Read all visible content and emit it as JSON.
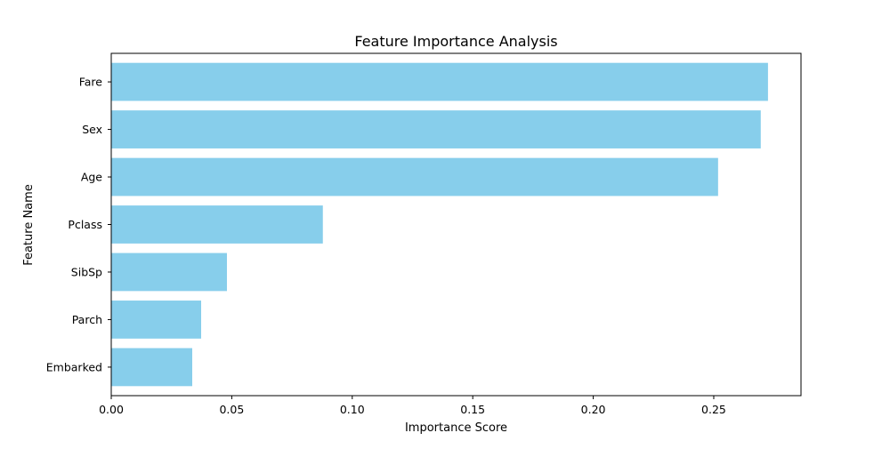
{
  "chart_data": {
    "type": "bar",
    "orientation": "horizontal",
    "title": "Feature Importance Analysis",
    "xlabel": "Importance Score",
    "ylabel": "Feature Name",
    "categories": [
      "Fare",
      "Sex",
      "Age",
      "Pclass",
      "SibSp",
      "Parch",
      "Embarked"
    ],
    "values": [
      0.2725,
      0.2695,
      0.2518,
      0.0878,
      0.048,
      0.0373,
      0.0336
    ],
    "xlim": [
      0.0,
      0.2862
    ],
    "xticks": [
      0.0,
      0.05,
      0.1,
      0.15,
      0.2,
      0.25
    ],
    "xtick_labels": [
      "0.00",
      "0.05",
      "0.10",
      "0.15",
      "0.20",
      "0.25"
    ],
    "grid": false,
    "bar_color": "#87CEEB"
  }
}
